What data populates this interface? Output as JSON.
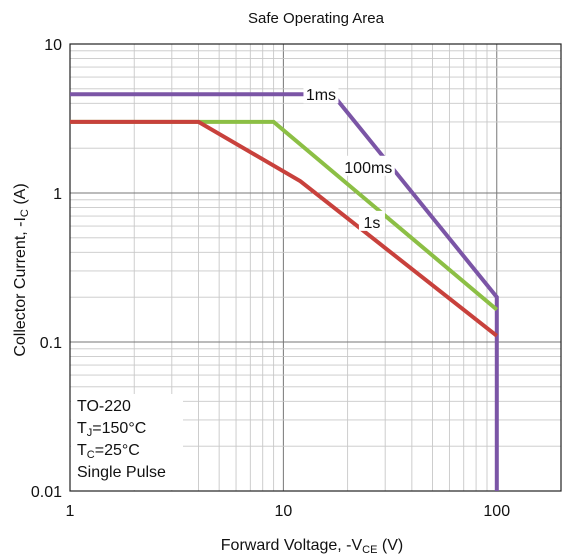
{
  "chart_data": {
    "type": "line",
    "title": "Safe Operating Area",
    "xlabel": {
      "main": "Forward Voltage, -V",
      "sub": "CE",
      "unit": " (V)"
    },
    "ylabel": {
      "main": "Collector Current, -I",
      "sub": "C",
      "unit": " (A)"
    },
    "x_scale": "log",
    "y_scale": "log",
    "xlim": [
      1,
      200
    ],
    "ylim": [
      0.01,
      10
    ],
    "x_ticks": [
      {
        "value": 1,
        "label": "1"
      },
      {
        "value": 10,
        "label": "10"
      },
      {
        "value": 100,
        "label": "100"
      }
    ],
    "y_ticks": [
      {
        "value": 10,
        "label": "10"
      },
      {
        "value": 1,
        "label": "1"
      },
      {
        "value": 0.1,
        "label": "0.1"
      },
      {
        "value": 0.01,
        "label": "0.01"
      }
    ],
    "grid": true,
    "series": [
      {
        "name": "1ms",
        "color": "#7b55a6",
        "points": [
          [
            1,
            4.6
          ],
          [
            17,
            4.6
          ],
          [
            100,
            0.2
          ],
          [
            100,
            0.01
          ]
        ],
        "label_at": [
          15,
          4.6
        ]
      },
      {
        "name": "100ms",
        "color": "#8cbf45",
        "points": [
          [
            1,
            3.0
          ],
          [
            9,
            3.0
          ],
          [
            100,
            0.165
          ]
        ],
        "label_at": [
          25,
          1.5
        ]
      },
      {
        "name": "1s",
        "color": "#c8413c",
        "points": [
          [
            1,
            3.0
          ],
          [
            4,
            3.0
          ],
          [
            12,
            1.2
          ],
          [
            100,
            0.11
          ]
        ],
        "label_at": [
          26,
          0.64
        ]
      }
    ],
    "annotations": {
      "package": "TO-220",
      "tj": {
        "prefix": "T",
        "sub": "J",
        "value": "=150°C"
      },
      "tc": {
        "prefix": "T",
        "sub": "C",
        "value": "=25°C"
      },
      "pulse": "Single Pulse"
    }
  }
}
